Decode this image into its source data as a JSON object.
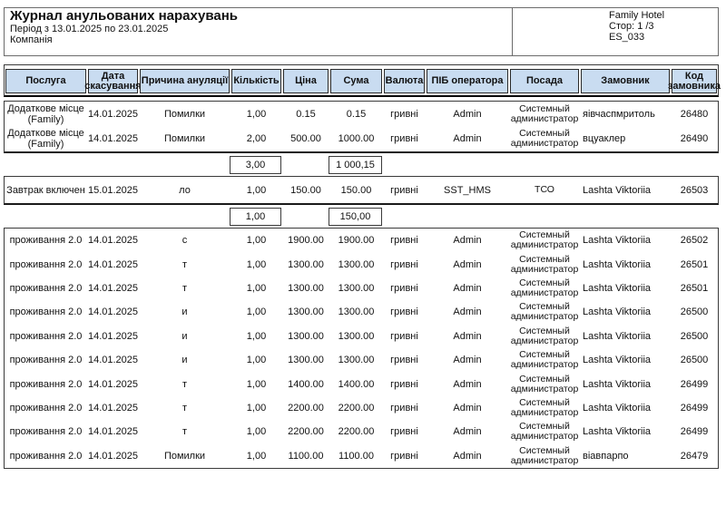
{
  "page": {
    "title": "Журнал анульованих нарахувань",
    "period": "Період з 13.01.2025 по 23.01.2025",
    "company_label": "Компанія",
    "hotel_name": "Family Hotel",
    "page_info": "Стор: 1 /3",
    "report_code": "ES_033"
  },
  "colors": {
    "header_bg": "#c9dcf1",
    "border": "#3a3a3a"
  },
  "table": {
    "columns": [
      "Послуга",
      "Дата скасування",
      "Причина ануляції",
      "Кількість",
      "Ціна",
      "Сума",
      "Валюта",
      "ПІБ оператора",
      "Посада",
      "Замовник",
      "Код замовника"
    ],
    "sections": [
      {
        "rows": [
          [
            "Додаткове місце (Family)",
            "14.01.2025",
            "Помилки",
            "1,00",
            "0.15",
            "0.15",
            "гривні",
            "Admin",
            "Системный администратор",
            "яівчаспмритоль",
            "26480"
          ],
          [
            "Додаткове місце (Family)",
            "14.01.2025",
            "Помилки",
            "2,00",
            "500.00",
            "1000.00",
            "гривні",
            "Admin",
            "Системный администратор",
            "вцуаклер",
            "26490"
          ]
        ],
        "subtotal": {
          "quantity": "3,00",
          "sum": "1 000,15"
        }
      },
      {
        "rows": [
          [
            "Завтрак включен",
            "15.01.2025",
            "ло",
            "1,00",
            "150.00",
            "150.00",
            "гривні",
            "SST_HMS",
            "ТСО",
            "Lashta Viktoriia",
            "26503"
          ]
        ],
        "subtotal": {
          "quantity": "1,00",
          "sum": "150,00"
        }
      },
      {
        "rows": [
          [
            "проживання 2.0",
            "14.01.2025",
            "с",
            "1,00",
            "1900.00",
            "1900.00",
            "гривні",
            "Admin",
            "Системный администратор",
            "Lashta Viktoriia",
            "26502"
          ],
          [
            "проживання 2.0",
            "14.01.2025",
            "т",
            "1,00",
            "1300.00",
            "1300.00",
            "гривні",
            "Admin",
            "Системный администратор",
            "Lashta Viktoriia",
            "26501"
          ],
          [
            "проживання 2.0",
            "14.01.2025",
            "т",
            "1,00",
            "1300.00",
            "1300.00",
            "гривні",
            "Admin",
            "Системный администратор",
            "Lashta Viktoriia",
            "26501"
          ],
          [
            "проживання 2.0",
            "14.01.2025",
            "и",
            "1,00",
            "1300.00",
            "1300.00",
            "гривні",
            "Admin",
            "Системный администратор",
            "Lashta Viktoriia",
            "26500"
          ],
          [
            "проживання 2.0",
            "14.01.2025",
            "и",
            "1,00",
            "1300.00",
            "1300.00",
            "гривні",
            "Admin",
            "Системный администратор",
            "Lashta Viktoriia",
            "26500"
          ],
          [
            "проживання 2.0",
            "14.01.2025",
            "и",
            "1,00",
            "1300.00",
            "1300.00",
            "гривні",
            "Admin",
            "Системный администратор",
            "Lashta Viktoriia",
            "26500"
          ],
          [
            "проживання 2.0",
            "14.01.2025",
            "т",
            "1,00",
            "1400.00",
            "1400.00",
            "гривні",
            "Admin",
            "Системный администратор",
            "Lashta Viktoriia",
            "26499"
          ],
          [
            "проживання 2.0",
            "14.01.2025",
            "т",
            "1,00",
            "2200.00",
            "2200.00",
            "гривні",
            "Admin",
            "Системный администратор",
            "Lashta Viktoriia",
            "26499"
          ],
          [
            "проживання 2.0",
            "14.01.2025",
            "т",
            "1,00",
            "2200.00",
            "2200.00",
            "гривні",
            "Admin",
            "Системный администратор",
            "Lashta Viktoriia",
            "26499"
          ],
          [
            "проживання 2.0",
            "14.01.2025",
            "Помилки",
            "1,00",
            "1100.00",
            "1100.00",
            "гривні",
            "Admin",
            "Системный администратор",
            "віавпарпо",
            "26479"
          ]
        ],
        "subtotal": null
      }
    ]
  }
}
